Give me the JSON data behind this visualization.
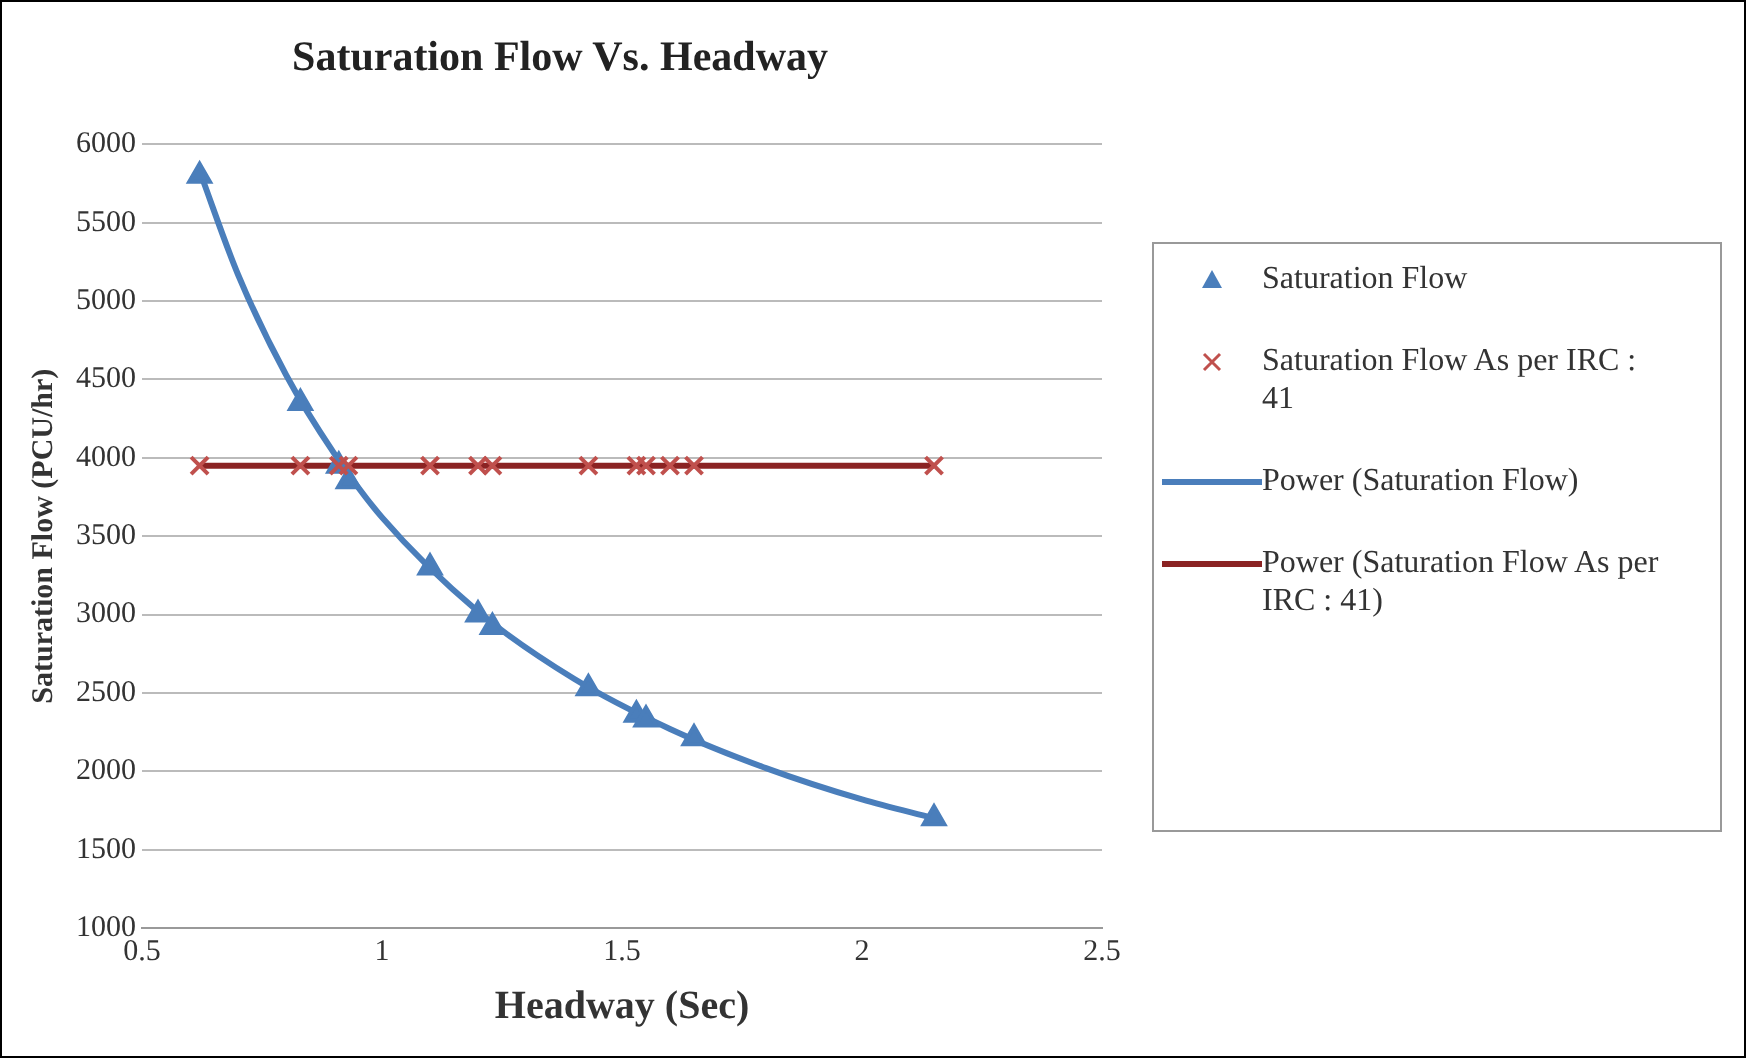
{
  "chart_data": {
    "type": "scatter",
    "title": "Saturation Flow Vs. Headway",
    "xlabel": "Headway (Sec)",
    "ylabel": "Saturation Flow (PCU/hr)",
    "xlim": [
      0.5,
      2.5
    ],
    "xticks": [
      0.5,
      1,
      1.5,
      2,
      2.5
    ],
    "ylim": [
      1000,
      6000
    ],
    "yticks": [
      1000,
      1500,
      2000,
      2500,
      3000,
      3500,
      4000,
      4500,
      5000,
      5500,
      6000
    ],
    "grid": "y",
    "legend": "right",
    "series": [
      {
        "name": "Saturation Flow",
        "type": "scatter",
        "marker": "triangle",
        "color": "#4a7ebb",
        "x": [
          0.62,
          0.83,
          0.91,
          0.93,
          1.1,
          1.2,
          1.23,
          1.43,
          1.53,
          1.55,
          1.65,
          2.15
        ],
        "values": [
          5800,
          4350,
          3950,
          3850,
          3300,
          3000,
          2920,
          2530,
          2360,
          2330,
          2210,
          1700
        ]
      },
      {
        "name": "Saturation Flow As per IRC : 41",
        "type": "scatter",
        "marker": "cross",
        "color": "#c0504d",
        "x": [
          0.62,
          0.83,
          0.91,
          0.93,
          1.1,
          1.2,
          1.23,
          1.43,
          1.53,
          1.55,
          1.6,
          1.65,
          2.15
        ],
        "values": [
          3950,
          3950,
          3950,
          3950,
          3950,
          3950,
          3950,
          3950,
          3950,
          3950,
          3950,
          3950,
          3950
        ]
      },
      {
        "name": "Power (Saturation Flow)",
        "type": "line",
        "marker": "none",
        "color": "#4a7ebb",
        "x": [
          0.62,
          0.7,
          0.8,
          0.9,
          1.0,
          1.2,
          1.4,
          1.6,
          1.8,
          2.0,
          2.15
        ],
        "values": [
          5830,
          5170,
          4530,
          4030,
          3620,
          3020,
          2590,
          2270,
          2020,
          1820,
          1700
        ]
      },
      {
        "name": "Power (Saturation Flow As per IRC : 41)",
        "type": "line",
        "marker": "none",
        "color": "#8b2323",
        "x": [
          0.62,
          2.15
        ],
        "values": [
          3950,
          3950
        ]
      }
    ]
  }
}
